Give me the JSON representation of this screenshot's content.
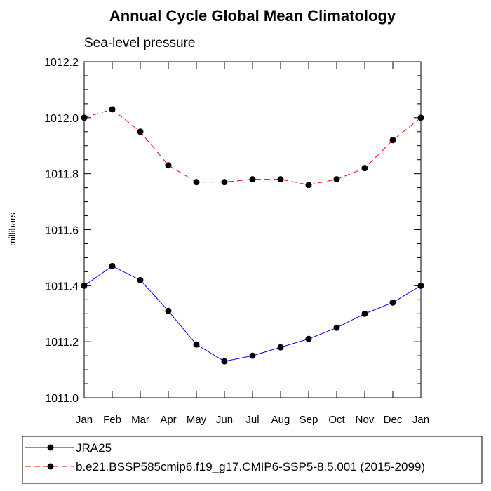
{
  "chart_data": {
    "type": "line",
    "title": "Annual Cycle Global Mean Climatology",
    "subtitle": "Sea-level pressure",
    "xlabel": "",
    "ylabel": "millibars",
    "categories": [
      "Jan",
      "Feb",
      "Mar",
      "Apr",
      "May",
      "Jun",
      "Jul",
      "Aug",
      "Sep",
      "Oct",
      "Nov",
      "Dec",
      "Jan"
    ],
    "ylim": [
      1011.0,
      1012.2
    ],
    "yticks": [
      "1011.0",
      "1011.2",
      "1011.4",
      "1011.6",
      "1011.8",
      "1012.0",
      "1012.2"
    ],
    "series": [
      {
        "name": "JRA25",
        "color": "#0000ff",
        "dash": "solid",
        "values": [
          1011.4,
          1011.47,
          1011.42,
          1011.31,
          1011.19,
          1011.13,
          1011.15,
          1011.18,
          1011.21,
          1011.25,
          1011.3,
          1011.34,
          1011.4
        ]
      },
      {
        "name": "b.e21.BSSP585cmip6.f19_g17.CMIP6-SSP5-8.5.001 (2015-2099)",
        "color": "#ff0000",
        "dash": "dashed",
        "values": [
          1012.0,
          1012.03,
          1011.95,
          1011.83,
          1011.77,
          1011.77,
          1011.78,
          1011.78,
          1011.76,
          1011.78,
          1011.82,
          1011.92,
          1012.0
        ]
      }
    ],
    "legend": "bottom"
  }
}
